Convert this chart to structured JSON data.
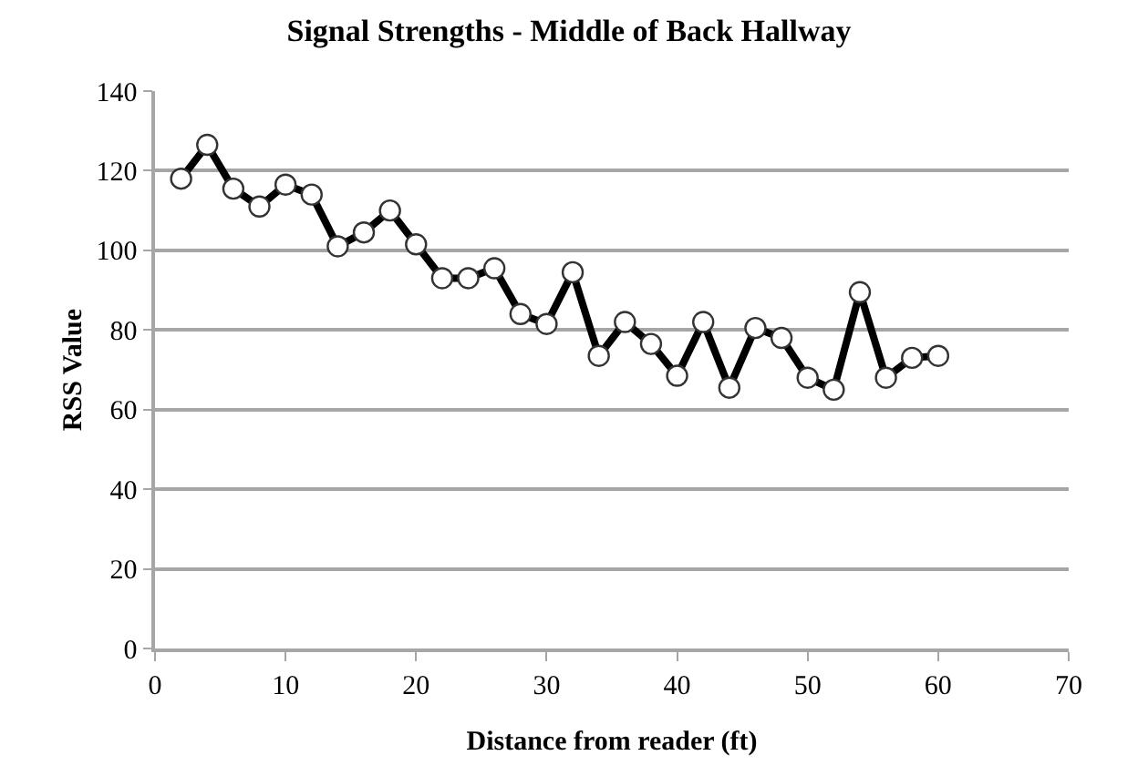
{
  "chart_data": {
    "type": "line",
    "title": "Signal Strengths - Middle of Back Hallway",
    "xlabel": "Distance from reader (ft)",
    "ylabel": "RSS Value",
    "x": [
      2,
      4,
      6,
      8,
      10,
      12,
      14,
      16,
      18,
      20,
      22,
      24,
      26,
      28,
      30,
      32,
      34,
      36,
      38,
      40,
      42,
      44,
      46,
      48,
      50,
      52,
      54,
      56,
      58,
      60
    ],
    "series": [
      {
        "color": "#000000",
        "values": [
          118,
          126.5,
          115.5,
          111,
          116.5,
          114,
          101,
          104.5,
          110,
          101.5,
          93,
          93,
          95.5,
          84,
          81.5,
          94.5,
          73.5,
          82,
          76.5,
          68.5,
          82,
          65.5,
          80.5,
          78,
          68,
          65,
          89.5,
          68,
          73,
          73.5
        ]
      }
    ],
    "xlim": [
      0,
      70
    ],
    "xticks": [
      0,
      10,
      20,
      30,
      40,
      50,
      60,
      70
    ],
    "ylim": [
      0,
      140
    ],
    "yticks": [
      0,
      20,
      40,
      60,
      80,
      100,
      120,
      140
    ],
    "grid": "y",
    "marker": "circle",
    "line_style": "solid"
  }
}
